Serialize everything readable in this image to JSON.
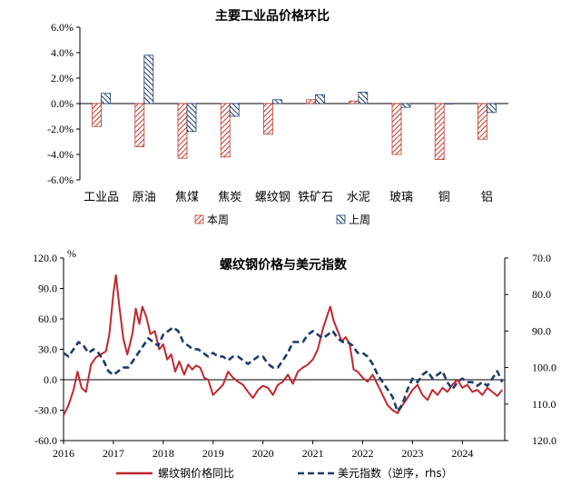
{
  "chart_data": [
    {
      "type": "bar",
      "title": "主要工业品价格环比",
      "categories": [
        "工业品",
        "原油",
        "焦煤",
        "焦炭",
        "螺纹钢",
        "铁矿石",
        "水泥",
        "玻璃",
        "铜",
        "铝"
      ],
      "series": [
        {
          "name": "本周",
          "values": [
            -1.8,
            -3.4,
            -4.3,
            -4.2,
            -2.4,
            0.3,
            0.2,
            -4.0,
            -4.4,
            -2.8
          ],
          "color": "#c0392b",
          "pattern": "diagonal-hatch"
        },
        {
          "name": "上周",
          "values": [
            0.8,
            3.8,
            -2.2,
            -1.0,
            0.3,
            0.7,
            0.9,
            -0.3,
            0.0,
            -0.7
          ],
          "color": "#1f3a6b",
          "pattern": "diagonal-hatch"
        }
      ],
      "y_ticks": [
        "6.0%",
        "4.0%",
        "2.0%",
        "0.0%",
        "-2.0%",
        "-4.0%",
        "-6.0%"
      ],
      "ylim": [
        -6,
        6
      ],
      "legend_position": "bottom"
    },
    {
      "type": "line",
      "title": "螺纹钢价格与美元指数",
      "y_unit_label": "%",
      "x_ticks": [
        "2016",
        "2017",
        "2018",
        "2019",
        "2020",
        "2021",
        "2022",
        "2023",
        "2024"
      ],
      "y_left_ticks": [
        "120.0",
        "90.0",
        "60.0",
        "30.0",
        "0.0",
        "-30.0",
        "-60.0"
      ],
      "y_left_lim": [
        -60,
        120
      ],
      "y_right_ticks": [
        "70.0",
        "80.0",
        "90.0",
        "100.0",
        "110.0",
        "120.0"
      ],
      "y_right_lim": [
        70,
        120
      ],
      "y_right_inverted": true,
      "legend_position": "bottom",
      "series": [
        {
          "name": "螺纹钢价格同比",
          "axis": "left",
          "style": "solid",
          "color": "#c1272d",
          "points": [
            [
              2016.0,
              -35
            ],
            [
              2016.1,
              -25
            ],
            [
              2016.2,
              -10
            ],
            [
              2016.28,
              8
            ],
            [
              2016.36,
              -8
            ],
            [
              2016.45,
              -12
            ],
            [
              2016.55,
              15
            ],
            [
              2016.65,
              22
            ],
            [
              2016.75,
              25
            ],
            [
              2016.85,
              28
            ],
            [
              2016.92,
              45
            ],
            [
              2017.0,
              85
            ],
            [
              2017.05,
              103
            ],
            [
              2017.12,
              72
            ],
            [
              2017.2,
              40
            ],
            [
              2017.28,
              25
            ],
            [
              2017.38,
              45
            ],
            [
              2017.45,
              70
            ],
            [
              2017.52,
              55
            ],
            [
              2017.58,
              72
            ],
            [
              2017.66,
              62
            ],
            [
              2017.74,
              45
            ],
            [
              2017.83,
              48
            ],
            [
              2017.92,
              30
            ],
            [
              2018.0,
              35
            ],
            [
              2018.08,
              20
            ],
            [
              2018.16,
              25
            ],
            [
              2018.24,
              8
            ],
            [
              2018.32,
              18
            ],
            [
              2018.42,
              5
            ],
            [
              2018.5,
              15
            ],
            [
              2018.58,
              10
            ],
            [
              2018.66,
              14
            ],
            [
              2018.74,
              12
            ],
            [
              2018.82,
              2
            ],
            [
              2018.9,
              0
            ],
            [
              2019.0,
              -15
            ],
            [
              2019.1,
              -10
            ],
            [
              2019.2,
              -5
            ],
            [
              2019.3,
              8
            ],
            [
              2019.4,
              2
            ],
            [
              2019.5,
              -2
            ],
            [
              2019.6,
              -5
            ],
            [
              2019.7,
              -12
            ],
            [
              2019.8,
              -18
            ],
            [
              2019.9,
              -10
            ],
            [
              2020.0,
              -6
            ],
            [
              2020.1,
              -8
            ],
            [
              2020.2,
              -15
            ],
            [
              2020.3,
              -5
            ],
            [
              2020.4,
              -2
            ],
            [
              2020.5,
              5
            ],
            [
              2020.6,
              -4
            ],
            [
              2020.7,
              8
            ],
            [
              2020.8,
              12
            ],
            [
              2020.9,
              15
            ],
            [
              2021.0,
              20
            ],
            [
              2021.1,
              30
            ],
            [
              2021.2,
              50
            ],
            [
              2021.3,
              65
            ],
            [
              2021.35,
              72
            ],
            [
              2021.42,
              58
            ],
            [
              2021.5,
              48
            ],
            [
              2021.58,
              38
            ],
            [
              2021.66,
              42
            ],
            [
              2021.74,
              35
            ],
            [
              2021.82,
              10
            ],
            [
              2021.9,
              8
            ],
            [
              2022.0,
              2
            ],
            [
              2022.1,
              -2
            ],
            [
              2022.2,
              5
            ],
            [
              2022.3,
              -5
            ],
            [
              2022.4,
              -15
            ],
            [
              2022.5,
              -25
            ],
            [
              2022.6,
              -30
            ],
            [
              2022.7,
              -33
            ],
            [
              2022.8,
              -25
            ],
            [
              2022.9,
              -18
            ],
            [
              2023.0,
              -10
            ],
            [
              2023.1,
              -5
            ],
            [
              2023.2,
              -15
            ],
            [
              2023.3,
              -20
            ],
            [
              2023.4,
              -10
            ],
            [
              2023.5,
              -15
            ],
            [
              2023.6,
              -8
            ],
            [
              2023.7,
              -12
            ],
            [
              2023.8,
              -5
            ],
            [
              2023.9,
              0
            ],
            [
              2024.0,
              -8
            ],
            [
              2024.1,
              -5
            ],
            [
              2024.2,
              -12
            ],
            [
              2024.3,
              -10
            ],
            [
              2024.4,
              -15
            ],
            [
              2024.5,
              -8
            ],
            [
              2024.6,
              -12
            ],
            [
              2024.7,
              -16
            ],
            [
              2024.8,
              -10
            ]
          ]
        },
        {
          "name": "美元指数（逆序，rhs）",
          "axis": "right",
          "style": "dashed",
          "color": "#1f3a6b",
          "points": [
            [
              2016.0,
              96
            ],
            [
              2016.1,
              97
            ],
            [
              2016.2,
              95
            ],
            [
              2016.3,
              93
            ],
            [
              2016.4,
              94
            ],
            [
              2016.5,
              96
            ],
            [
              2016.6,
              95
            ],
            [
              2016.7,
              96
            ],
            [
              2016.8,
              98
            ],
            [
              2016.9,
              101
            ],
            [
              2017.0,
              102
            ],
            [
              2017.1,
              101
            ],
            [
              2017.2,
              100
            ],
            [
              2017.3,
              100
            ],
            [
              2017.4,
              98
            ],
            [
              2017.5,
              96
            ],
            [
              2017.6,
              94
            ],
            [
              2017.7,
              92
            ],
            [
              2017.8,
              93
            ],
            [
              2017.9,
              94
            ],
            [
              2018.0,
              91
            ],
            [
              2018.1,
              90
            ],
            [
              2018.2,
              89
            ],
            [
              2018.3,
              90
            ],
            [
              2018.4,
              93
            ],
            [
              2018.5,
              94
            ],
            [
              2018.6,
              95
            ],
            [
              2018.7,
              95
            ],
            [
              2018.8,
              96
            ],
            [
              2018.9,
              97
            ],
            [
              2019.0,
              96
            ],
            [
              2019.1,
              97
            ],
            [
              2019.2,
              97
            ],
            [
              2019.3,
              98
            ],
            [
              2019.4,
              97
            ],
            [
              2019.5,
              97
            ],
            [
              2019.6,
              98
            ],
            [
              2019.7,
              99
            ],
            [
              2019.8,
              98
            ],
            [
              2019.9,
              97
            ],
            [
              2020.0,
              97
            ],
            [
              2020.1,
              99
            ],
            [
              2020.2,
              100
            ],
            [
              2020.3,
              100
            ],
            [
              2020.4,
              98
            ],
            [
              2020.5,
              96
            ],
            [
              2020.6,
              93
            ],
            [
              2020.7,
              93
            ],
            [
              2020.8,
              93
            ],
            [
              2020.9,
              91
            ],
            [
              2021.0,
              90
            ],
            [
              2021.1,
              91
            ],
            [
              2021.2,
              92
            ],
            [
              2021.3,
              91
            ],
            [
              2021.4,
              90
            ],
            [
              2021.5,
              92
            ],
            [
              2021.6,
              93
            ],
            [
              2021.7,
              93
            ],
            [
              2021.8,
              94
            ],
            [
              2021.9,
              96
            ],
            [
              2022.0,
              96
            ],
            [
              2022.1,
              97
            ],
            [
              2022.2,
              99
            ],
            [
              2022.3,
              102
            ],
            [
              2022.4,
              104
            ],
            [
              2022.5,
              106
            ],
            [
              2022.6,
              108
            ],
            [
              2022.7,
              112
            ],
            [
              2022.8,
              110
            ],
            [
              2022.9,
              106
            ],
            [
              2023.0,
              103
            ],
            [
              2023.1,
              104
            ],
            [
              2023.2,
              102
            ],
            [
              2023.3,
              101
            ],
            [
              2023.4,
              103
            ],
            [
              2023.5,
              102
            ],
            [
              2023.6,
              101
            ],
            [
              2023.7,
              104
            ],
            [
              2023.8,
              106
            ],
            [
              2023.9,
              104
            ],
            [
              2024.0,
              103
            ],
            [
              2024.1,
              104
            ],
            [
              2024.2,
              104
            ],
            [
              2024.3,
              105
            ],
            [
              2024.4,
              104
            ],
            [
              2024.5,
              105
            ],
            [
              2024.6,
              103
            ],
            [
              2024.7,
              101
            ],
            [
              2024.8,
              104
            ]
          ]
        }
      ]
    }
  ]
}
